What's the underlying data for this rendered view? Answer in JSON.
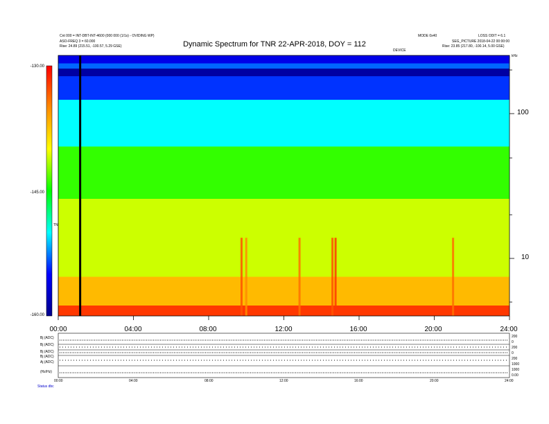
{
  "chart_data": {
    "type": "heatmap",
    "title": "Dynamic Spectrum for TNR 22-APR-2018, DOY = 112",
    "xlabel": "",
    "ylabel": "",
    "x_ticks": [
      "00:00",
      "04:00",
      "08:00",
      "12:00",
      "16:00",
      "20:00",
      "24:00"
    ],
    "x_range": [
      "00:00",
      "24:00"
    ],
    "y_scale": "log",
    "y_right_ticks": [
      "100",
      "10"
    ],
    "colorbar": {
      "label": "TNR",
      "ticks": [
        "-130.00",
        "-145.00",
        "-160.00"
      ],
      "range": [
        -160,
        -130
      ],
      "colors": [
        "#00008b",
        "#0000ff",
        "#00ffff",
        "#00ff00",
        "#ffff00",
        "#ff8c00",
        "#ff0000"
      ]
    },
    "bands": [
      {
        "from": 0.0,
        "to": 0.03,
        "level": -134
      },
      {
        "from": 0.03,
        "to": 0.05,
        "level": -137
      },
      {
        "from": 0.05,
        "to": 0.08,
        "level": -131
      },
      {
        "from": 0.08,
        "to": 0.17,
        "level": -136
      },
      {
        "from": 0.17,
        "to": 0.35,
        "level": -140
      },
      {
        "from": 0.35,
        "to": 0.55,
        "level": -146
      },
      {
        "from": 0.55,
        "to": 0.85,
        "level": -149
      },
      {
        "from": 0.85,
        "to": 0.96,
        "level": -153
      },
      {
        "from": 0.96,
        "to": 1.0,
        "level": -158
      }
    ],
    "vertical_line_time": "01:10",
    "bursts": [
      {
        "time": "09:45",
        "level": -157
      },
      {
        "time": "10:00",
        "level": -155
      },
      {
        "time": "12:50",
        "level": -156
      },
      {
        "time": "14:35",
        "level": -157
      },
      {
        "time": "14:45",
        "level": -158
      },
      {
        "time": "21:00",
        "level": -156
      }
    ]
  },
  "header": {
    "left_line1": "Cnt 000 = INT-DBT-INT-4600 (000 000 (1/1s) - OVIDING WP)",
    "left_line2": "ASO-FREQ 3 = 60.000",
    "left_line3": "Rise:  24.89 (215.51, -100.57, 5.29 GSE)",
    "center_small": "DEVICE",
    "right_a": "MODE 0x40",
    "right_b": "LOSS ODIT = 6.1",
    "right_line2": "SEG_PICTURE 2018-04-22 00:00:00",
    "right_line3": "Rise:  23.85 (217.80, -100.14, 5.00 GSE)",
    "right_unit": "kHz"
  },
  "lower_panel": {
    "row_labels": [
      "Bj (ADC)",
      "Bj (ADC)",
      "Bj (ADC)",
      "Bj (ADC)",
      "Aj (ADC)",
      "(Hz/Hz)"
    ],
    "right_labels": [
      "200",
      "0",
      "200",
      "0",
      "200",
      "1000",
      "1000",
      "0.00"
    ],
    "x_ticks": [
      "00:00",
      "04:00",
      "08:00",
      "12:00",
      "16:00",
      "20:00",
      "24:00"
    ],
    "footer_label": "Status  dbc"
  }
}
